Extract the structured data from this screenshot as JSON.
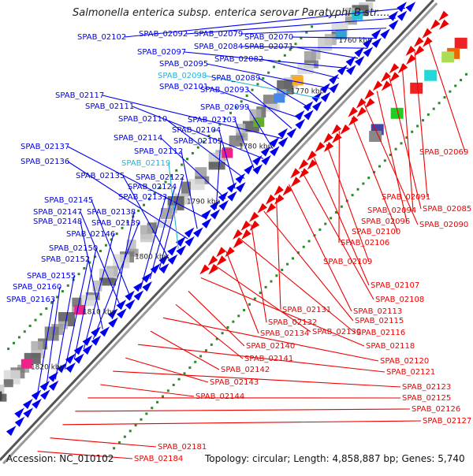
{
  "title": "Salmonella enterica subsp. enterica serovar Paratyphi B str....",
  "accession": "Accession: NC_010102",
  "topology": "Topology: circular; Length: 4,858,887 bp; Genes: 5,740",
  "colors": {
    "forward": "#0000ee",
    "reverse": "#ee0000",
    "highlight": "#22b5d8",
    "backbone": "#888888",
    "tick": "#2a8a2a"
  },
  "ruler": [
    "1760 kbp",
    "1770 kbp",
    "1780 kbp",
    "1790 kbp",
    "1800 kbp",
    "1810 kbp",
    "1820 kbp"
  ],
  "forward_labels": [
    "SPAB_02102",
    "SPAB_02092",
    "SPAB_02079",
    "SPAB_02070",
    "SPAB_02084",
    "SPAB_02071",
    "SPAB_02097",
    "SPAB_02082",
    "SPAB_02095",
    "SPAB_02098",
    "SPAB_02089",
    "SPAB_02101",
    "SPAB_02093",
    "SPAB_02117",
    "SPAB_02099",
    "SPAB_02111",
    "SPAB_02103",
    "SPAB_02110",
    "SPAB_02104",
    "SPAB_02114",
    "SPAB_02105",
    "SPAB_02137",
    "SPAB_02112",
    "SPAB_02136",
    "SPAB_02119",
    "SPAB_02135",
    "SPAB_02122",
    "SPAB_02124",
    "SPAB_02133",
    "SPAB_02145",
    "SPAB_02147",
    "SPAB_02138",
    "SPAB_02148",
    "SPAB_02139",
    "SPAB_02146",
    "SPAB_02150",
    "SPAB_02152",
    "SPAB_02155",
    "SPAB_02160",
    "SPAB_02163"
  ],
  "reverse_labels": [
    "SPAB_02069",
    "SPAB_02091",
    "SPAB_02094",
    "SPAB_02085",
    "SPAB_02096",
    "SPAB_02090",
    "SPAB_02100",
    "SPAB_02106",
    "SPAB_02109",
    "SPAB_02107",
    "SPAB_02108",
    "SPAB_02113",
    "SPAB_02131",
    "SPAB_02115",
    "SPAB_02132",
    "SPAB_02116",
    "SPAB_02134",
    "SPAB_02130",
    "SPAB_02118",
    "SPAB_02140",
    "SPAB_02141",
    "SPAB_02120",
    "SPAB_02142",
    "SPAB_02121",
    "SPAB_02143",
    "SPAB_02123",
    "SPAB_02144",
    "SPAB_02125",
    "SPAB_02126",
    "SPAB_02127",
    "SPAB_02181",
    "SPAB_02184"
  ]
}
